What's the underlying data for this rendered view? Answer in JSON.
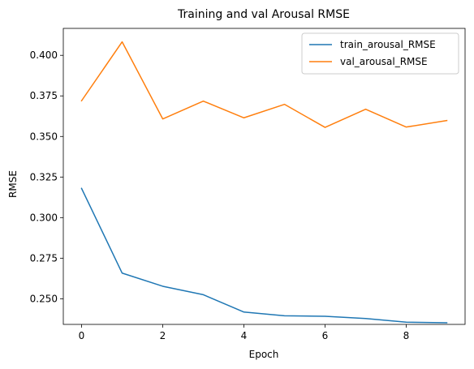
{
  "chart_data": {
    "type": "line",
    "title": "Training and val Arousal RMSE",
    "xlabel": "Epoch",
    "ylabel": "RMSE",
    "x": [
      0,
      1,
      2,
      3,
      4,
      5,
      6,
      7,
      8,
      9
    ],
    "xlim": [
      -0.45,
      9.45
    ],
    "ylim": [
      0.2342,
      0.4166
    ],
    "xticks": [
      0,
      2,
      4,
      6,
      8
    ],
    "yticks": [
      0.25,
      0.275,
      0.3,
      0.325,
      0.35,
      0.375,
      0.4
    ],
    "ytick_labels": [
      "0.250",
      "0.275",
      "0.300",
      "0.325",
      "0.350",
      "0.375",
      "0.400"
    ],
    "grid": false,
    "legend_position": "top-right",
    "series": [
      {
        "name": "train_arousal_RMSE",
        "color": "#1f77b4",
        "values": [
          0.318,
          0.2658,
          0.2577,
          0.2525,
          0.2418,
          0.2395,
          0.2392,
          0.2378,
          0.2356,
          0.2352
        ]
      },
      {
        "name": "val_arousal_RMSE",
        "color": "#ff7f0e",
        "values": [
          0.372,
          0.4083,
          0.3608,
          0.3718,
          0.3615,
          0.3698,
          0.3556,
          0.3668,
          0.3558,
          0.3598
        ]
      }
    ]
  }
}
